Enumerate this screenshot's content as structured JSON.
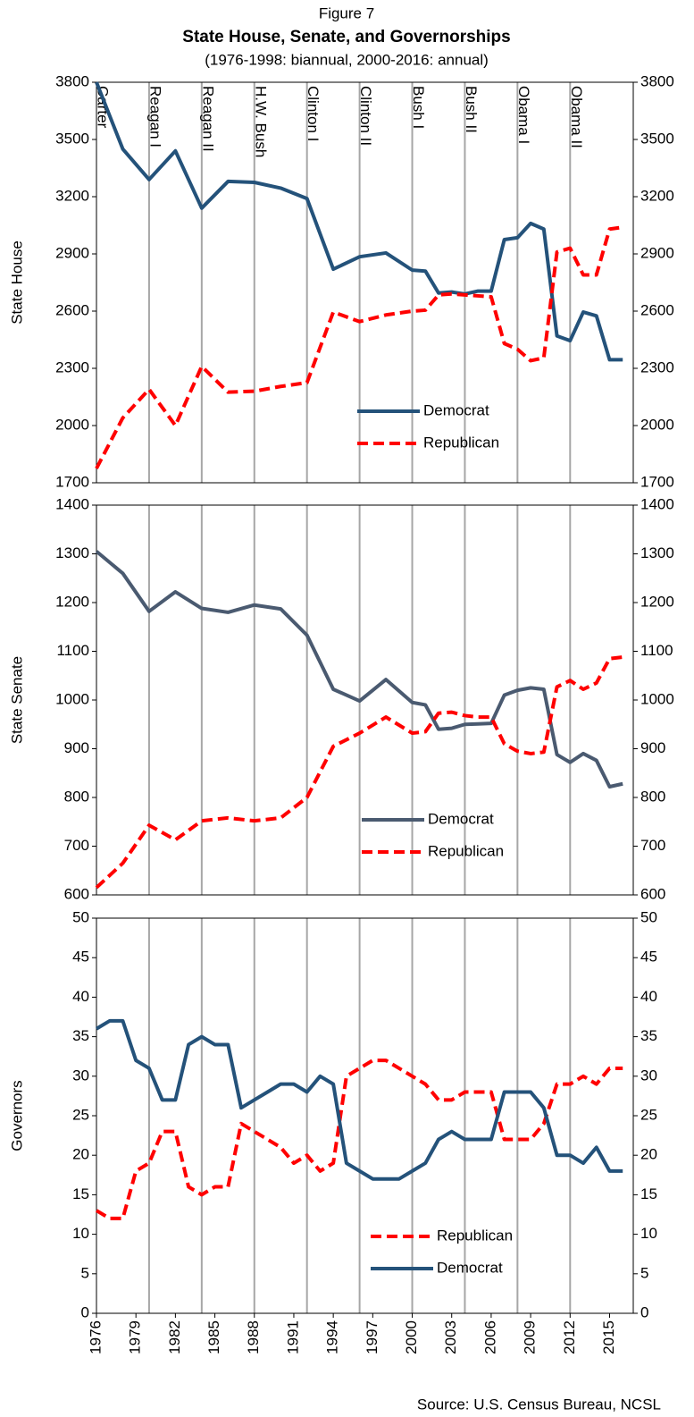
{
  "figure_label": "Figure 7",
  "title": "State House, Senate, and Governorships",
  "subtitle": "(1976-1998: biannual, 2000-2016: annual)",
  "source": "Source: U.S. Census Bureau, NCSL",
  "chart_data": [
    {
      "type": "line",
      "ylabel": "State House",
      "ylim": [
        1700,
        3800
      ],
      "yticks": [
        1700,
        2000,
        2300,
        2600,
        2900,
        3200,
        3500,
        3800
      ],
      "xlim": [
        1976,
        2016.8
      ],
      "annotations": [
        {
          "label": "Carter",
          "x": 1976
        },
        {
          "label": "Reagan I",
          "x": 1980
        },
        {
          "label": "Reagan II",
          "x": 1984
        },
        {
          "label": "H.W. Bush",
          "x": 1988
        },
        {
          "label": "Clinton I",
          "x": 1992
        },
        {
          "label": "Clinton II",
          "x": 1996
        },
        {
          "label": "Bush I",
          "x": 2000
        },
        {
          "label": "Bush II",
          "x": 2004
        },
        {
          "label": "Obama I",
          "x": 2008
        },
        {
          "label": "Obama II",
          "x": 2012
        }
      ],
      "x": [
        1976,
        1978,
        1980,
        1982,
        1984,
        1986,
        1988,
        1990,
        1992,
        1994,
        1996,
        1998,
        2000,
        2001,
        2002,
        2003,
        2004,
        2005,
        2006,
        2007,
        2008,
        2009,
        2010,
        2011,
        2012,
        2013,
        2014,
        2015,
        2016
      ],
      "series": [
        {
          "name": "Democrat",
          "color": "#24527a",
          "dash": false,
          "values": [
            3800,
            3450,
            3290,
            3440,
            3140,
            3280,
            3275,
            3245,
            3190,
            2820,
            2885,
            2905,
            2815,
            2810,
            2695,
            2700,
            2690,
            2705,
            2705,
            2975,
            2985,
            3060,
            3030,
            2470,
            2445,
            2595,
            2575,
            2345,
            2345
          ]
        },
        {
          "name": "Republican",
          "color": "#ff0000",
          "dash": true,
          "values": [
            1775,
            2040,
            2190,
            2000,
            2310,
            2175,
            2180,
            2205,
            2225,
            2595,
            2545,
            2580,
            2600,
            2605,
            2685,
            2690,
            2685,
            2680,
            2675,
            2430,
            2400,
            2340,
            2355,
            2910,
            2930,
            2790,
            2790,
            3030,
            3040
          ]
        }
      ]
    },
    {
      "type": "line",
      "ylabel": "State Senate",
      "ylim": [
        600,
        1400
      ],
      "yticks": [
        600,
        700,
        800,
        900,
        1000,
        1100,
        1200,
        1300,
        1400
      ],
      "xlim": [
        1976,
        2016.8
      ],
      "x": [
        1976,
        1978,
        1980,
        1982,
        1984,
        1986,
        1988,
        1990,
        1992,
        1994,
        1996,
        1998,
        2000,
        2001,
        2002,
        2003,
        2004,
        2005,
        2006,
        2007,
        2008,
        2009,
        2010,
        2011,
        2012,
        2013,
        2014,
        2015,
        2016
      ],
      "series": [
        {
          "name": "Democrat",
          "color": "#4a5a70",
          "dash": false,
          "values": [
            1305,
            1260,
            1182,
            1222,
            1188,
            1180,
            1195,
            1187,
            1133,
            1022,
            998,
            1042,
            995,
            990,
            940,
            942,
            950,
            951,
            952,
            1010,
            1020,
            1025,
            1022,
            888,
            872,
            890,
            876,
            822,
            828
          ]
        },
        {
          "name": "Republican",
          "color": "#ff0000",
          "dash": true,
          "values": [
            615,
            665,
            743,
            713,
            752,
            758,
            752,
            758,
            800,
            905,
            932,
            965,
            932,
            935,
            973,
            975,
            968,
            965,
            965,
            910,
            895,
            890,
            893,
            1027,
            1040,
            1022,
            1035,
            1085,
            1088
          ]
        }
      ]
    },
    {
      "type": "line",
      "ylabel": "Governors",
      "ylim": [
        0,
        50
      ],
      "yticks": [
        0,
        5,
        10,
        15,
        20,
        25,
        30,
        35,
        40,
        45,
        50
      ],
      "xlim": [
        1976,
        2016.8
      ],
      "xticks": [
        1976,
        1979,
        1982,
        1985,
        1988,
        1991,
        1994,
        1997,
        2000,
        2003,
        2006,
        2009,
        2012,
        2015
      ],
      "x": [
        1976,
        1977,
        1978,
        1979,
        1980,
        1981,
        1982,
        1983,
        1984,
        1985,
        1986,
        1987,
        1988,
        1989,
        1990,
        1991,
        1992,
        1993,
        1994,
        1995,
        1996,
        1997,
        1998,
        1999,
        2000,
        2001,
        2002,
        2003,
        2004,
        2005,
        2006,
        2007,
        2008,
        2009,
        2010,
        2011,
        2012,
        2013,
        2014,
        2015,
        2016
      ],
      "series": [
        {
          "name": "Republican",
          "color": "#ff0000",
          "dash": true,
          "values": [
            13,
            12,
            12,
            18,
            19,
            23,
            23,
            16,
            15,
            16,
            16,
            24,
            23,
            22,
            21,
            19,
            20,
            18,
            19,
            30,
            31,
            32,
            32,
            31,
            30,
            29,
            27,
            27,
            28,
            28,
            28,
            22,
            22,
            22,
            24,
            29,
            29,
            30,
            29,
            31,
            31
          ]
        },
        {
          "name": "Democrat",
          "color": "#24527a",
          "dash": false,
          "values": [
            36,
            37,
            37,
            32,
            31,
            27,
            27,
            34,
            35,
            34,
            34,
            26,
            27,
            28,
            29,
            29,
            28,
            30,
            29,
            19,
            18,
            17,
            17,
            17,
            18,
            19,
            22,
            23,
            22,
            22,
            22,
            28,
            28,
            28,
            26,
            20,
            20,
            19,
            21,
            18,
            18
          ]
        }
      ]
    }
  ]
}
